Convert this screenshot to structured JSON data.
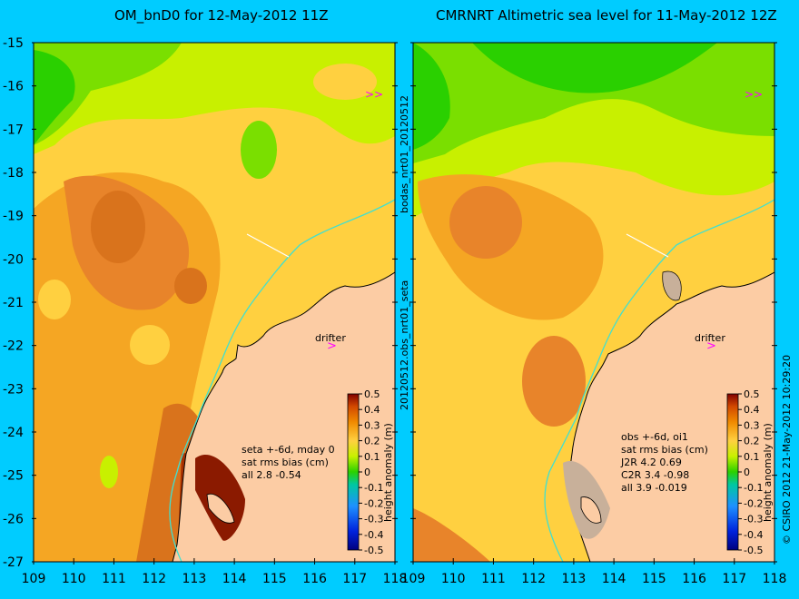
{
  "panels": [
    {
      "title": "OM_bnD0 for 12-May-2012 11Z",
      "stats": [
        "seta +-6d, mday 0",
        "sat rms bias (cm)",
        "all 2.8 -0.54"
      ],
      "drifter_label": "drifter"
    },
    {
      "title": "CMRNRT Altimetric sea level  for 11-May-2012 12Z",
      "stats": [
        "obs +-6d, oi1",
        "sat rms bias (cm)",
        "J2R   4.2 0.69",
        "C2R   3.4 -0.98",
        "all 3.9 -0.019"
      ],
      "drifter_label": "drifter"
    }
  ],
  "side_label_top": "bodas_nrt01_20120512",
  "side_label_bottom": "20120512.obs_nrt01_seta",
  "credit": "© CSIRO 2012   21-May-2012 10:29:20",
  "colorbar_label": "height anomaly (m)",
  "y_ticks": [
    "-15",
    "-16",
    "-17",
    "-18",
    "-19",
    "-20",
    "-21",
    "-22",
    "-23",
    "-24",
    "-25",
    "-26",
    "-27"
  ],
  "x_ticks": [
    "109",
    "110",
    "111",
    "112",
    "113",
    "114",
    "115",
    "116",
    "117",
    "118"
  ],
  "colorbar_ticks": [
    "0.5",
    "0.4",
    "0.3",
    "0.2",
    "0.1",
    "0",
    "-0.1",
    "-0.2",
    "-0.3",
    "-0.4",
    "-0.5"
  ],
  "colors": {
    "background": "#00ccff",
    "land": "#fccca4",
    "coast_line": "#40e0d0",
    "marker": "#ff00ff"
  }
}
